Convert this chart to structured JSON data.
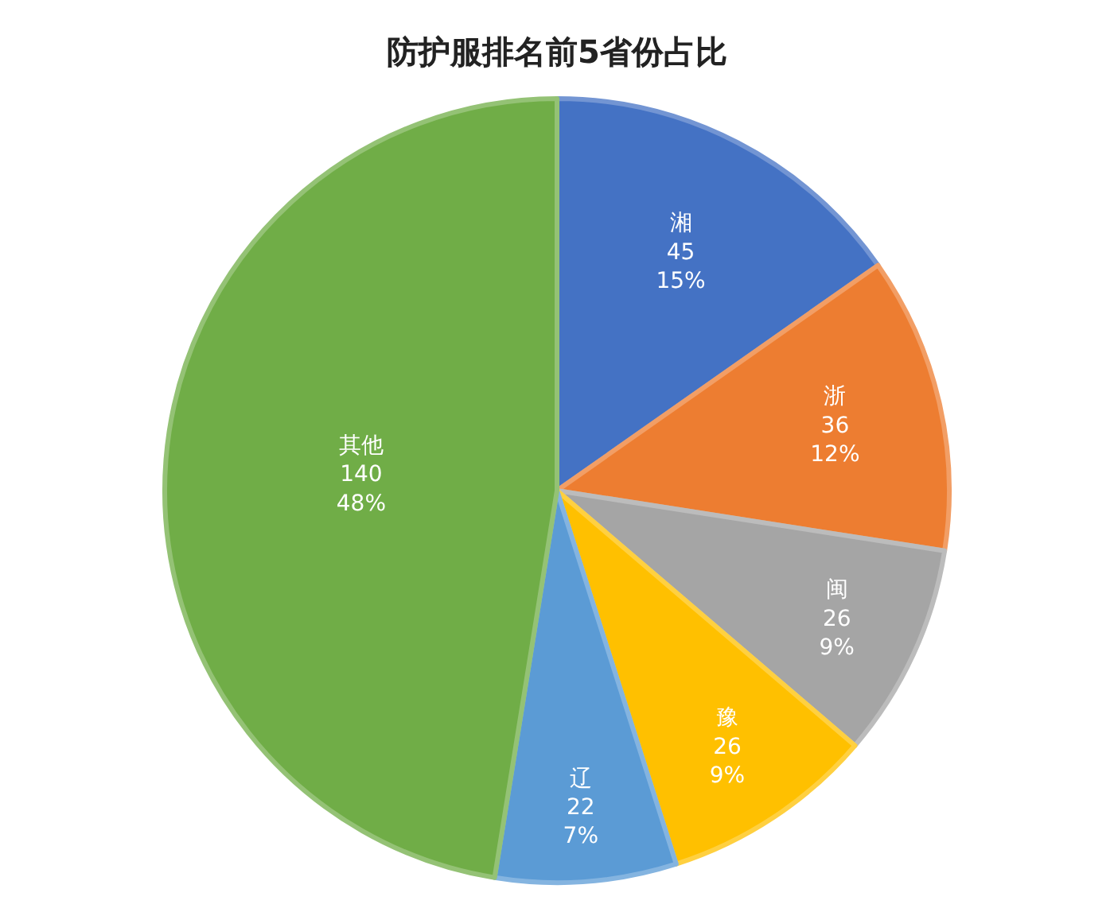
{
  "chart_data": {
    "type": "pie",
    "title": "防护服排名前5省份占比",
    "categories": [
      "湘",
      "浙",
      "闽",
      "豫",
      "辽",
      "其他"
    ],
    "values": [
      45,
      36,
      26,
      26,
      22,
      140
    ],
    "value_labels": [
      "45\n15%",
      "36\n12%",
      "26\n9%",
      "26\n9%",
      "22\n7%",
      "140\n48%"
    ],
    "colors": [
      "#4472c4",
      "#ed7d31",
      "#a5a5a5",
      "#ffc000",
      "#5b9bd5",
      "#70ad47"
    ],
    "data_labels": true,
    "legend": false
  }
}
